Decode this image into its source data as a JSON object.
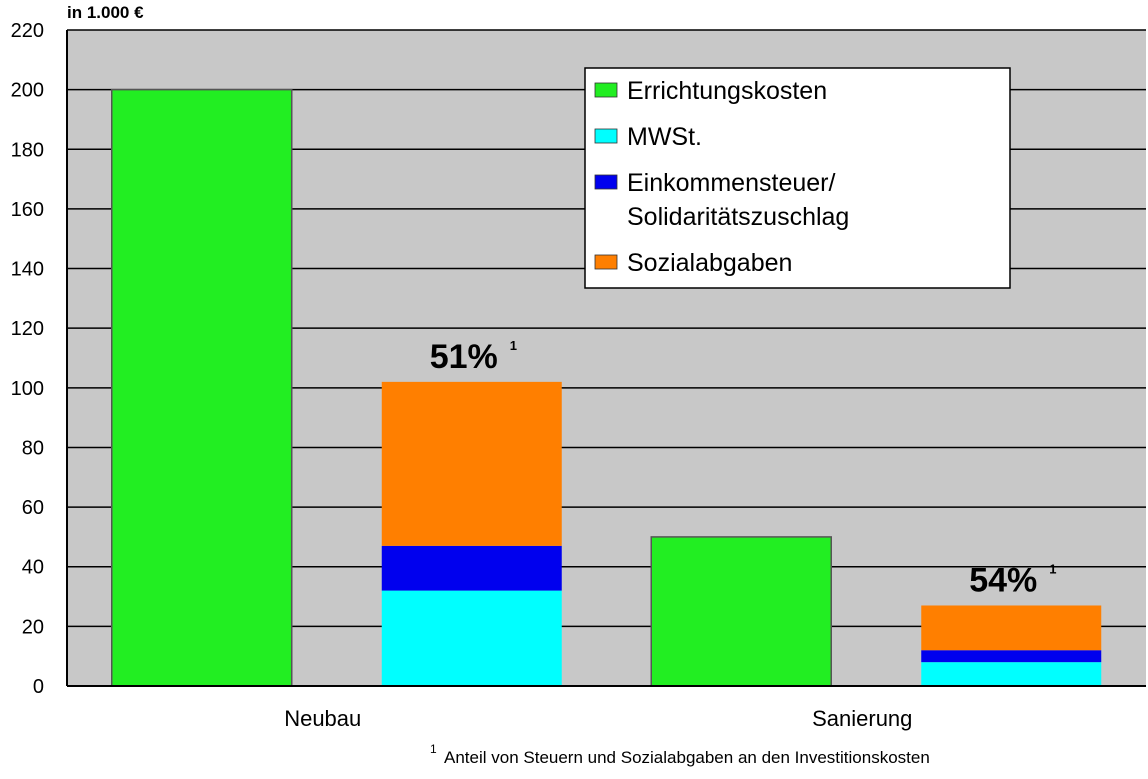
{
  "chart_data": {
    "type": "bar",
    "ylabel": "in 1.000 €",
    "ylim": [
      0,
      220
    ],
    "yticks": [
      0,
      20,
      40,
      60,
      80,
      100,
      120,
      140,
      160,
      180,
      200,
      220
    ],
    "grid": true,
    "legend_position": "top-right",
    "categories": [
      "Neubau",
      "Sanierung"
    ],
    "series": [
      {
        "name": "Errichtungskosten",
        "color": "#22ee22",
        "values": [
          200,
          50
        ]
      },
      {
        "name": "MWSt.",
        "color": "#00ffff",
        "values": [
          32,
          8
        ]
      },
      {
        "name": "Einkommensteuer/\nSolidaritätszuschlag",
        "color": "#0000ee",
        "values": [
          15,
          4
        ]
      },
      {
        "name": "Sozialabgaben",
        "color": "#ff7f00",
        "values": [
          55,
          15
        ]
      }
    ],
    "bar_groups": [
      {
        "category": "Neubau",
        "bars": [
          {
            "stack": [
              "Errichtungskosten"
            ]
          },
          {
            "stack": [
              "MWSt.",
              "Einkommensteuer/\nSolidaritätszuschlag",
              "Sozialabgaben"
            ],
            "label": "51%",
            "footnote_mark": "1"
          }
        ]
      },
      {
        "category": "Sanierung",
        "bars": [
          {
            "stack": [
              "Errichtungskosten"
            ]
          },
          {
            "stack": [
              "MWSt.",
              "Einkommensteuer/\nSolidaritätszuschlag",
              "Sozialabgaben"
            ],
            "label": "54%",
            "footnote_mark": "1"
          }
        ]
      }
    ],
    "footnote": "Anteil von Steuern und Sozialabgaben an den Investitionskosten",
    "footnote_mark": "1"
  }
}
